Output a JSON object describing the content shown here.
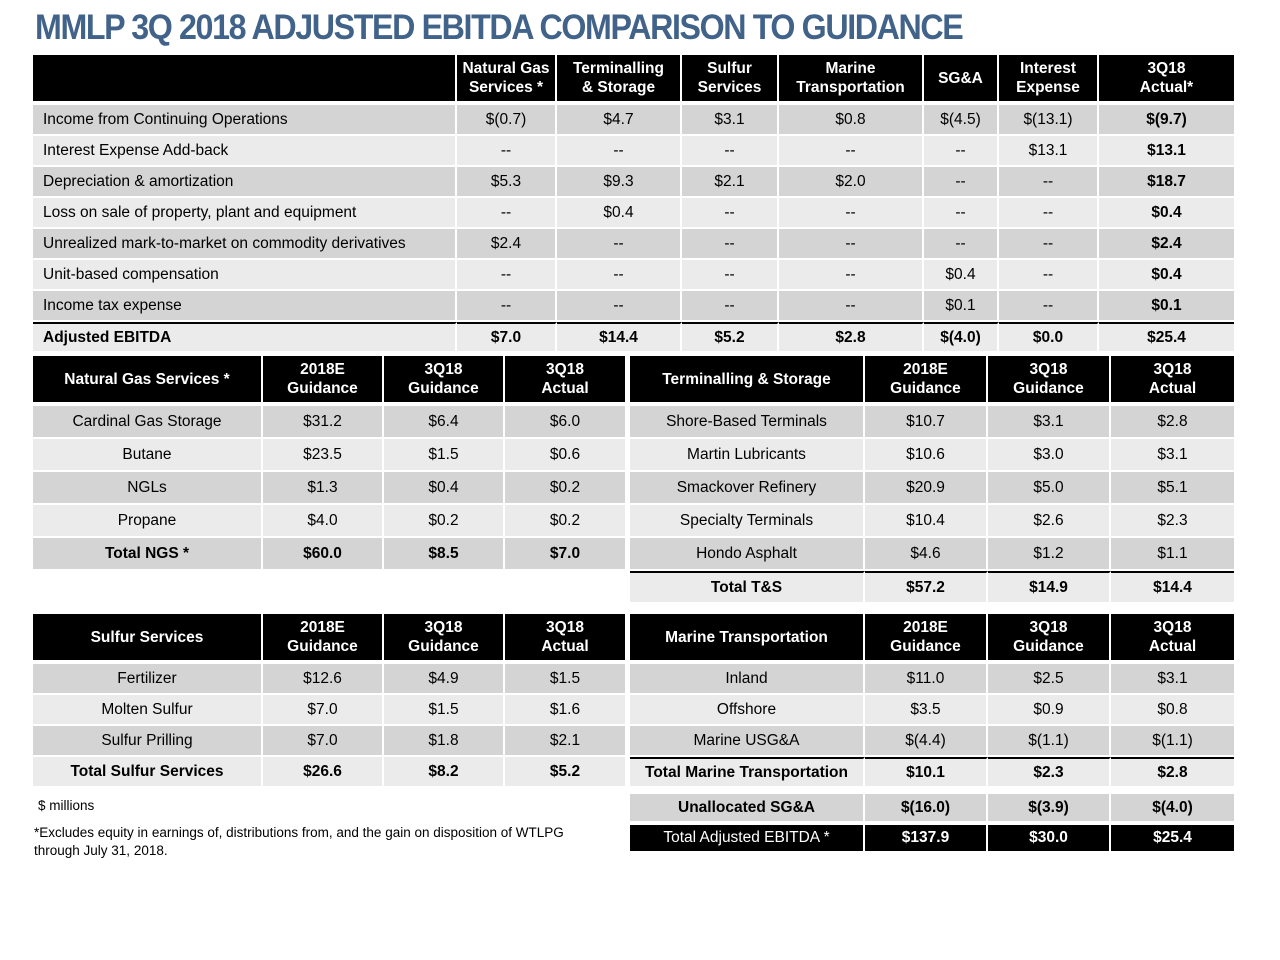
{
  "title": "MMLP 3Q 2018 ADJUSTED EBITDA COMPARISON TO GUIDANCE",
  "main": {
    "headers": [
      "Natural Gas\nServices *",
      "Terminalling\n& Storage",
      "Sulfur\nServices",
      "Marine\nTransportation",
      "SG&A",
      "Interest\nExpense",
      "3Q18\nActual*"
    ],
    "rows": [
      {
        "label": "Income from Continuing Operations",
        "cells": [
          "$(0.7)",
          "$4.7",
          "$3.1",
          "$0.8",
          "$(4.5)",
          "$(13.1)",
          "$(9.7)"
        ]
      },
      {
        "label": "Interest Expense Add-back",
        "cells": [
          "--",
          "--",
          "--",
          "--",
          "--",
          "$13.1",
          "$13.1"
        ]
      },
      {
        "label": "Depreciation & amortization",
        "cells": [
          "$5.3",
          "$9.3",
          "$2.1",
          "$2.0",
          "--",
          "--",
          "$18.7"
        ]
      },
      {
        "label": "Loss on sale of property, plant and equipment",
        "cells": [
          "--",
          "$0.4",
          "--",
          "--",
          "--",
          "--",
          "$0.4"
        ]
      },
      {
        "label": "Unrealized mark-to-market on commodity derivatives",
        "cells": [
          "$2.4",
          "--",
          "--",
          "--",
          "--",
          "--",
          "$2.4"
        ]
      },
      {
        "label": "Unit-based compensation",
        "cells": [
          "--",
          "--",
          "--",
          "--",
          "$0.4",
          "--",
          "$0.4"
        ]
      },
      {
        "label": "Income tax expense",
        "cells": [
          "--",
          "--",
          "--",
          "--",
          "$0.1",
          "--",
          "$0.1"
        ]
      }
    ],
    "total": {
      "label": "Adjusted EBITDA",
      "cells": [
        "$7.0",
        "$14.4",
        "$5.2",
        "$2.8",
        "$(4.0)",
        "$0.0",
        "$25.4"
      ]
    }
  },
  "col_headers": {
    "guidance_2018e": "2018E\nGuidance",
    "guidance_3q18": "3Q18\nGuidance",
    "actual_3q18": "3Q18\nActual"
  },
  "ngs": {
    "title": "Natural Gas Services *",
    "rows": [
      {
        "label": "Cardinal Gas Storage",
        "cells": [
          "$31.2",
          "$6.4",
          "$6.0"
        ]
      },
      {
        "label": "Butane",
        "cells": [
          "$23.5",
          "$1.5",
          "$0.6"
        ]
      },
      {
        "label": "NGLs",
        "cells": [
          "$1.3",
          "$0.4",
          "$0.2"
        ]
      },
      {
        "label": "Propane",
        "cells": [
          "$4.0",
          "$0.2",
          "$0.2"
        ]
      }
    ],
    "total": {
      "label": "Total NGS *",
      "cells": [
        "$60.0",
        "$8.5",
        "$7.0"
      ]
    }
  },
  "ts": {
    "title": "Terminalling & Storage",
    "rows": [
      {
        "label": "Shore-Based Terminals",
        "cells": [
          "$10.7",
          "$3.1",
          "$2.8"
        ]
      },
      {
        "label": "Martin Lubricants",
        "cells": [
          "$10.6",
          "$3.0",
          "$3.1"
        ]
      },
      {
        "label": "Smackover Refinery",
        "cells": [
          "$20.9",
          "$5.0",
          "$5.1"
        ]
      },
      {
        "label": "Specialty Terminals",
        "cells": [
          "$10.4",
          "$2.6",
          "$2.3"
        ]
      },
      {
        "label": "Hondo Asphalt",
        "cells": [
          "$4.6",
          "$1.2",
          "$1.1"
        ]
      }
    ],
    "total": {
      "label": "Total T&S",
      "cells": [
        "$57.2",
        "$14.9",
        "$14.4"
      ]
    }
  },
  "sul": {
    "title": "Sulfur Services",
    "rows": [
      {
        "label": "Fertilizer",
        "cells": [
          "$12.6",
          "$4.9",
          "$1.5"
        ]
      },
      {
        "label": "Molten Sulfur",
        "cells": [
          "$7.0",
          "$1.5",
          "$1.6"
        ]
      },
      {
        "label": "Sulfur Prilling",
        "cells": [
          "$7.0",
          "$1.8",
          "$2.1"
        ]
      }
    ],
    "total": {
      "label": "Total Sulfur Services",
      "cells": [
        "$26.6",
        "$8.2",
        "$5.2"
      ]
    }
  },
  "mar": {
    "title": "Marine Transportation",
    "rows": [
      {
        "label": "Inland",
        "cells": [
          "$11.0",
          "$2.5",
          "$3.1"
        ]
      },
      {
        "label": "Offshore",
        "cells": [
          "$3.5",
          "$0.9",
          "$0.8"
        ]
      },
      {
        "label": "Marine USG&A",
        "cells": [
          "$(4.4)",
          "$(1.1)",
          "$(1.1)"
        ]
      }
    ],
    "total": {
      "label": "Total Marine Transportation",
      "cells": [
        "$10.1",
        "$2.3",
        "$2.8"
      ]
    }
  },
  "unallocated": {
    "label": "Unallocated SG&A",
    "cells": [
      "$(16.0)",
      "$(3.9)",
      "$(4.0)"
    ]
  },
  "total_adjusted": {
    "label": "Total Adjusted EBITDA *",
    "cells": [
      "$137.9",
      "$30.0",
      "$25.4"
    ]
  },
  "units_note": "$ millions",
  "footnote": "*Excludes equity in earnings of, distributions from, and the gain on disposition of WTLPG through July 31, 2018."
}
